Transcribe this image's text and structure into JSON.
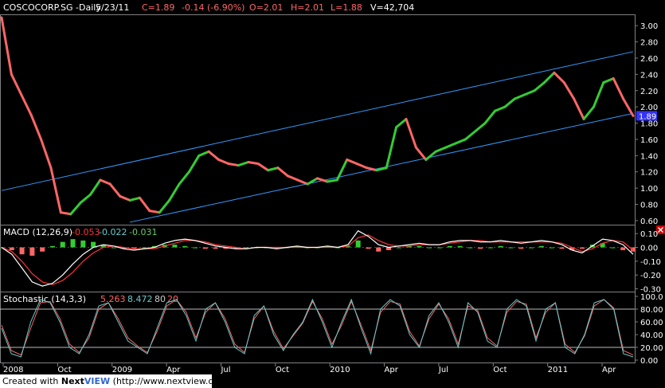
{
  "header": {
    "symbol": "COSCOCORP.SG -Daily",
    "date": "5/23/11",
    "close": "C=1.89",
    "change": "-0.14 (-6.90%)",
    "open": "O=2.01",
    "high": "H=2.01",
    "low": "L=1.88",
    "volume": "V=42,704"
  },
  "colors": {
    "up": "#33cc33",
    "down": "#ff6666",
    "channel": "#3399ff",
    "macd_line": "#ffffff",
    "signal_line": "#ff3333",
    "stoch_k": "#66cccc",
    "stoch_d": "#ff6666",
    "axis_text": "#ffffff",
    "price_tag_bg": "#3333ff",
    "close_icon_bg": "#cc0000"
  },
  "macd_legend": {
    "label": "MACD (12,26,9)",
    "macd": "-0.053",
    "signal": "-0.022",
    "hist": "-0.031"
  },
  "stoch_legend": {
    "label": "Stochastic (14,3,3)",
    "k": "5.263",
    "d": "8.472",
    "upper": "80",
    "lower": "20"
  },
  "footer": {
    "created": "Created with",
    "brand_a": "Next",
    "brand_b": "VIEW",
    "url": "(http://www.nextview.com)"
  },
  "close_icon": "close-x-icon",
  "chart_data": [
    {
      "type": "line",
      "panel": "price",
      "ylim": [
        0.55,
        3.1
      ],
      "yticks": [
        "3.00",
        "2.80",
        "2.60",
        "2.40",
        "2.20",
        "2.00",
        "1.80",
        "1.60",
        "1.40",
        "1.20",
        "1.00",
        "0.80",
        "0.60"
      ],
      "last_price_label": "1.89",
      "x_ticks": [
        "2008",
        "Oct",
        "2009",
        "Apr",
        "Jul",
        "Oct",
        "2010",
        "Apr",
        "Jul",
        "Oct",
        "2011",
        "Apr"
      ],
      "series": [
        {
          "values": [
            3.1,
            2.4,
            2.15,
            1.9,
            1.6,
            1.25,
            0.7,
            0.68,
            0.82,
            0.92,
            1.1,
            1.05,
            0.9,
            0.85,
            0.88,
            0.72,
            0.7,
            0.85,
            1.05,
            1.2,
            1.4,
            1.45,
            1.35,
            1.3,
            1.28,
            1.32,
            1.3,
            1.22,
            1.25,
            1.15,
            1.1,
            1.05,
            1.12,
            1.08,
            1.1,
            1.35,
            1.3,
            1.25,
            1.22,
            1.25,
            1.75,
            1.85,
            1.5,
            1.35,
            1.45,
            1.5,
            1.55,
            1.6,
            1.7,
            1.8,
            1.95,
            2.0,
            2.1,
            2.15,
            2.2,
            2.3,
            2.42,
            2.3,
            2.1,
            1.85,
            2.0,
            2.3,
            2.35,
            2.1,
            1.89
          ]
        }
      ],
      "channel_lines": [
        {
          "from": [
            0,
            0.97
          ],
          "to": [
            64,
            2.68
          ]
        },
        {
          "from": [
            13,
            0.58
          ],
          "to": [
            64,
            1.92
          ]
        }
      ]
    },
    {
      "type": "line",
      "panel": "macd",
      "ylim": [
        -0.32,
        0.13
      ],
      "yticks": [
        "0.10",
        "0.00",
        "-0.10",
        "-0.20",
        "-0.30"
      ],
      "series": [
        {
          "name": "MACD",
          "values": [
            0.0,
            -0.05,
            -0.15,
            -0.25,
            -0.28,
            -0.26,
            -0.2,
            -0.12,
            -0.05,
            0.0,
            0.02,
            0.01,
            -0.01,
            -0.02,
            -0.01,
            0.0,
            0.03,
            0.05,
            0.06,
            0.05,
            0.03,
            0.01,
            0.0,
            -0.01,
            -0.01,
            0.0,
            0.0,
            -0.01,
            0.0,
            0.01,
            0.0,
            0.0,
            0.01,
            0.0,
            0.02,
            0.12,
            0.08,
            0.02,
            0.0,
            0.01,
            0.02,
            0.03,
            0.02,
            0.02,
            0.04,
            0.05,
            0.05,
            0.04,
            0.04,
            0.05,
            0.04,
            0.03,
            0.04,
            0.05,
            0.04,
            0.02,
            -0.02,
            -0.04,
            0.01,
            0.06,
            0.05,
            0.02,
            -0.05
          ]
        },
        {
          "name": "Signal",
          "values": [
            0.0,
            -0.03,
            -0.1,
            -0.19,
            -0.25,
            -0.27,
            -0.24,
            -0.18,
            -0.1,
            -0.04,
            0.0,
            0.01,
            0.0,
            -0.01,
            -0.01,
            -0.01,
            0.01,
            0.03,
            0.05,
            0.05,
            0.04,
            0.02,
            0.01,
            0.0,
            -0.01,
            0.0,
            0.0,
            0.0,
            0.0,
            0.0,
            0.0,
            0.0,
            0.0,
            0.0,
            0.01,
            0.07,
            0.09,
            0.05,
            0.02,
            0.01,
            0.01,
            0.02,
            0.02,
            0.02,
            0.03,
            0.04,
            0.05,
            0.05,
            0.04,
            0.04,
            0.04,
            0.04,
            0.04,
            0.04,
            0.04,
            0.03,
            0.0,
            -0.03,
            -0.01,
            0.03,
            0.05,
            0.04,
            -0.02
          ]
        }
      ]
    },
    {
      "type": "line",
      "panel": "stochastic",
      "ylim": [
        0,
        100
      ],
      "yticks": [
        "100.0",
        "80.00",
        "60.00",
        "40.00",
        "20.00",
        "0.00"
      ],
      "reference_lines": [
        80,
        20
      ],
      "series": [
        {
          "name": "%K",
          "values": [
            50,
            10,
            5,
            60,
            95,
            90,
            60,
            20,
            10,
            40,
            85,
            90,
            60,
            30,
            20,
            10,
            50,
            90,
            95,
            70,
            30,
            80,
            90,
            60,
            20,
            10,
            70,
            85,
            40,
            15,
            40,
            60,
            95,
            60,
            20,
            60,
            95,
            50,
            10,
            80,
            95,
            85,
            40,
            20,
            70,
            90,
            60,
            20,
            90,
            75,
            30,
            20,
            80,
            95,
            85,
            30,
            80,
            90,
            20,
            10,
            40,
            90,
            95,
            80,
            10,
            5
          ]
        },
        {
          "name": "%D",
          "values": [
            55,
            15,
            8,
            50,
            90,
            92,
            65,
            25,
            12,
            35,
            80,
            90,
            65,
            35,
            22,
            12,
            45,
            85,
            95,
            75,
            35,
            75,
            90,
            65,
            25,
            12,
            65,
            85,
            45,
            18,
            38,
            58,
            92,
            65,
            25,
            55,
            92,
            55,
            15,
            75,
            92,
            88,
            45,
            22,
            65,
            88,
            65,
            25,
            85,
            78,
            35,
            22,
            75,
            92,
            88,
            35,
            75,
            90,
            25,
            12,
            38,
            85,
            95,
            82,
            15,
            8
          ]
        }
      ]
    }
  ]
}
